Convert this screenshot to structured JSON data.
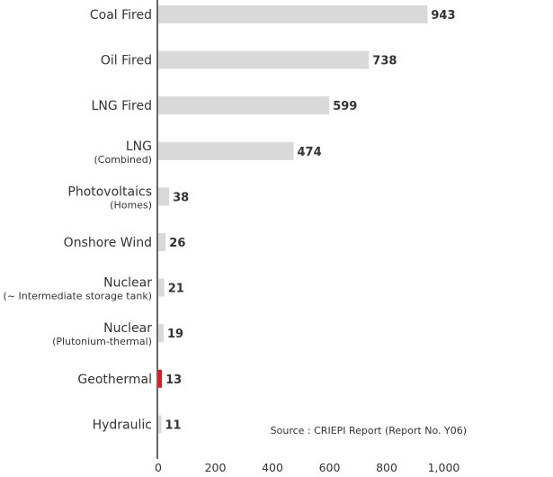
{
  "chart_data": {
    "type": "bar",
    "orientation": "horizontal",
    "categories": [
      {
        "label": "Coal Fired",
        "sublabel": ""
      },
      {
        "label": "Oil Fired",
        "sublabel": ""
      },
      {
        "label": "LNG Fired",
        "sublabel": ""
      },
      {
        "label": "LNG",
        "sublabel": "(Combined)"
      },
      {
        "label": "Photovoltaics",
        "sublabel": "(Homes)"
      },
      {
        "label": "Onshore Wind",
        "sublabel": ""
      },
      {
        "label": "Nuclear",
        "sublabel": "(~ Intermediate storage tank)"
      },
      {
        "label": "Nuclear",
        "sublabel": "(Plutonium-thermal)"
      },
      {
        "label": "Geothermal",
        "sublabel": ""
      },
      {
        "label": "Hydraulic",
        "sublabel": ""
      }
    ],
    "values": [
      943,
      738,
      599,
      474,
      38,
      26,
      21,
      19,
      13,
      11
    ],
    "highlight_index": 8,
    "xlim": [
      0,
      1080
    ],
    "xticks": [
      {
        "value": 0,
        "label": "0"
      },
      {
        "value": 200,
        "label": "200"
      },
      {
        "value": 400,
        "label": "400"
      },
      {
        "value": 600,
        "label": "600"
      },
      {
        "value": 800,
        "label": "800"
      },
      {
        "value": 1000,
        "label": "1,000"
      }
    ],
    "grid": false,
    "colors": {
      "bar": "#d9d9d9",
      "highlight": "#e0191f",
      "axis": "#333333"
    },
    "source_note": "Source : CRIEPI Report (Report No. Y06)"
  }
}
